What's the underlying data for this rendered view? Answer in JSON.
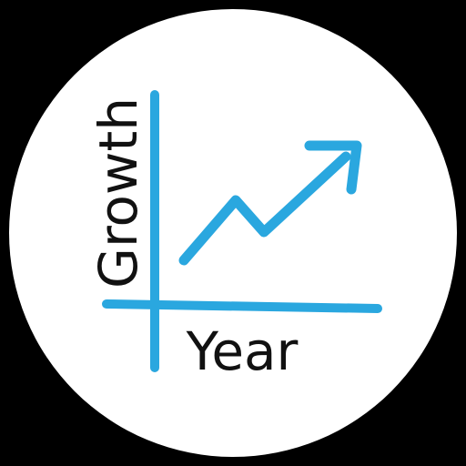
{
  "icon": {
    "name": "growth-chart-icon",
    "labels": {
      "y_axis": "Growth",
      "x_axis": "Year"
    },
    "colors": {
      "background": "#000000",
      "disc": "#ffffff",
      "accent": "#2aa7df",
      "text": "#111111"
    }
  }
}
